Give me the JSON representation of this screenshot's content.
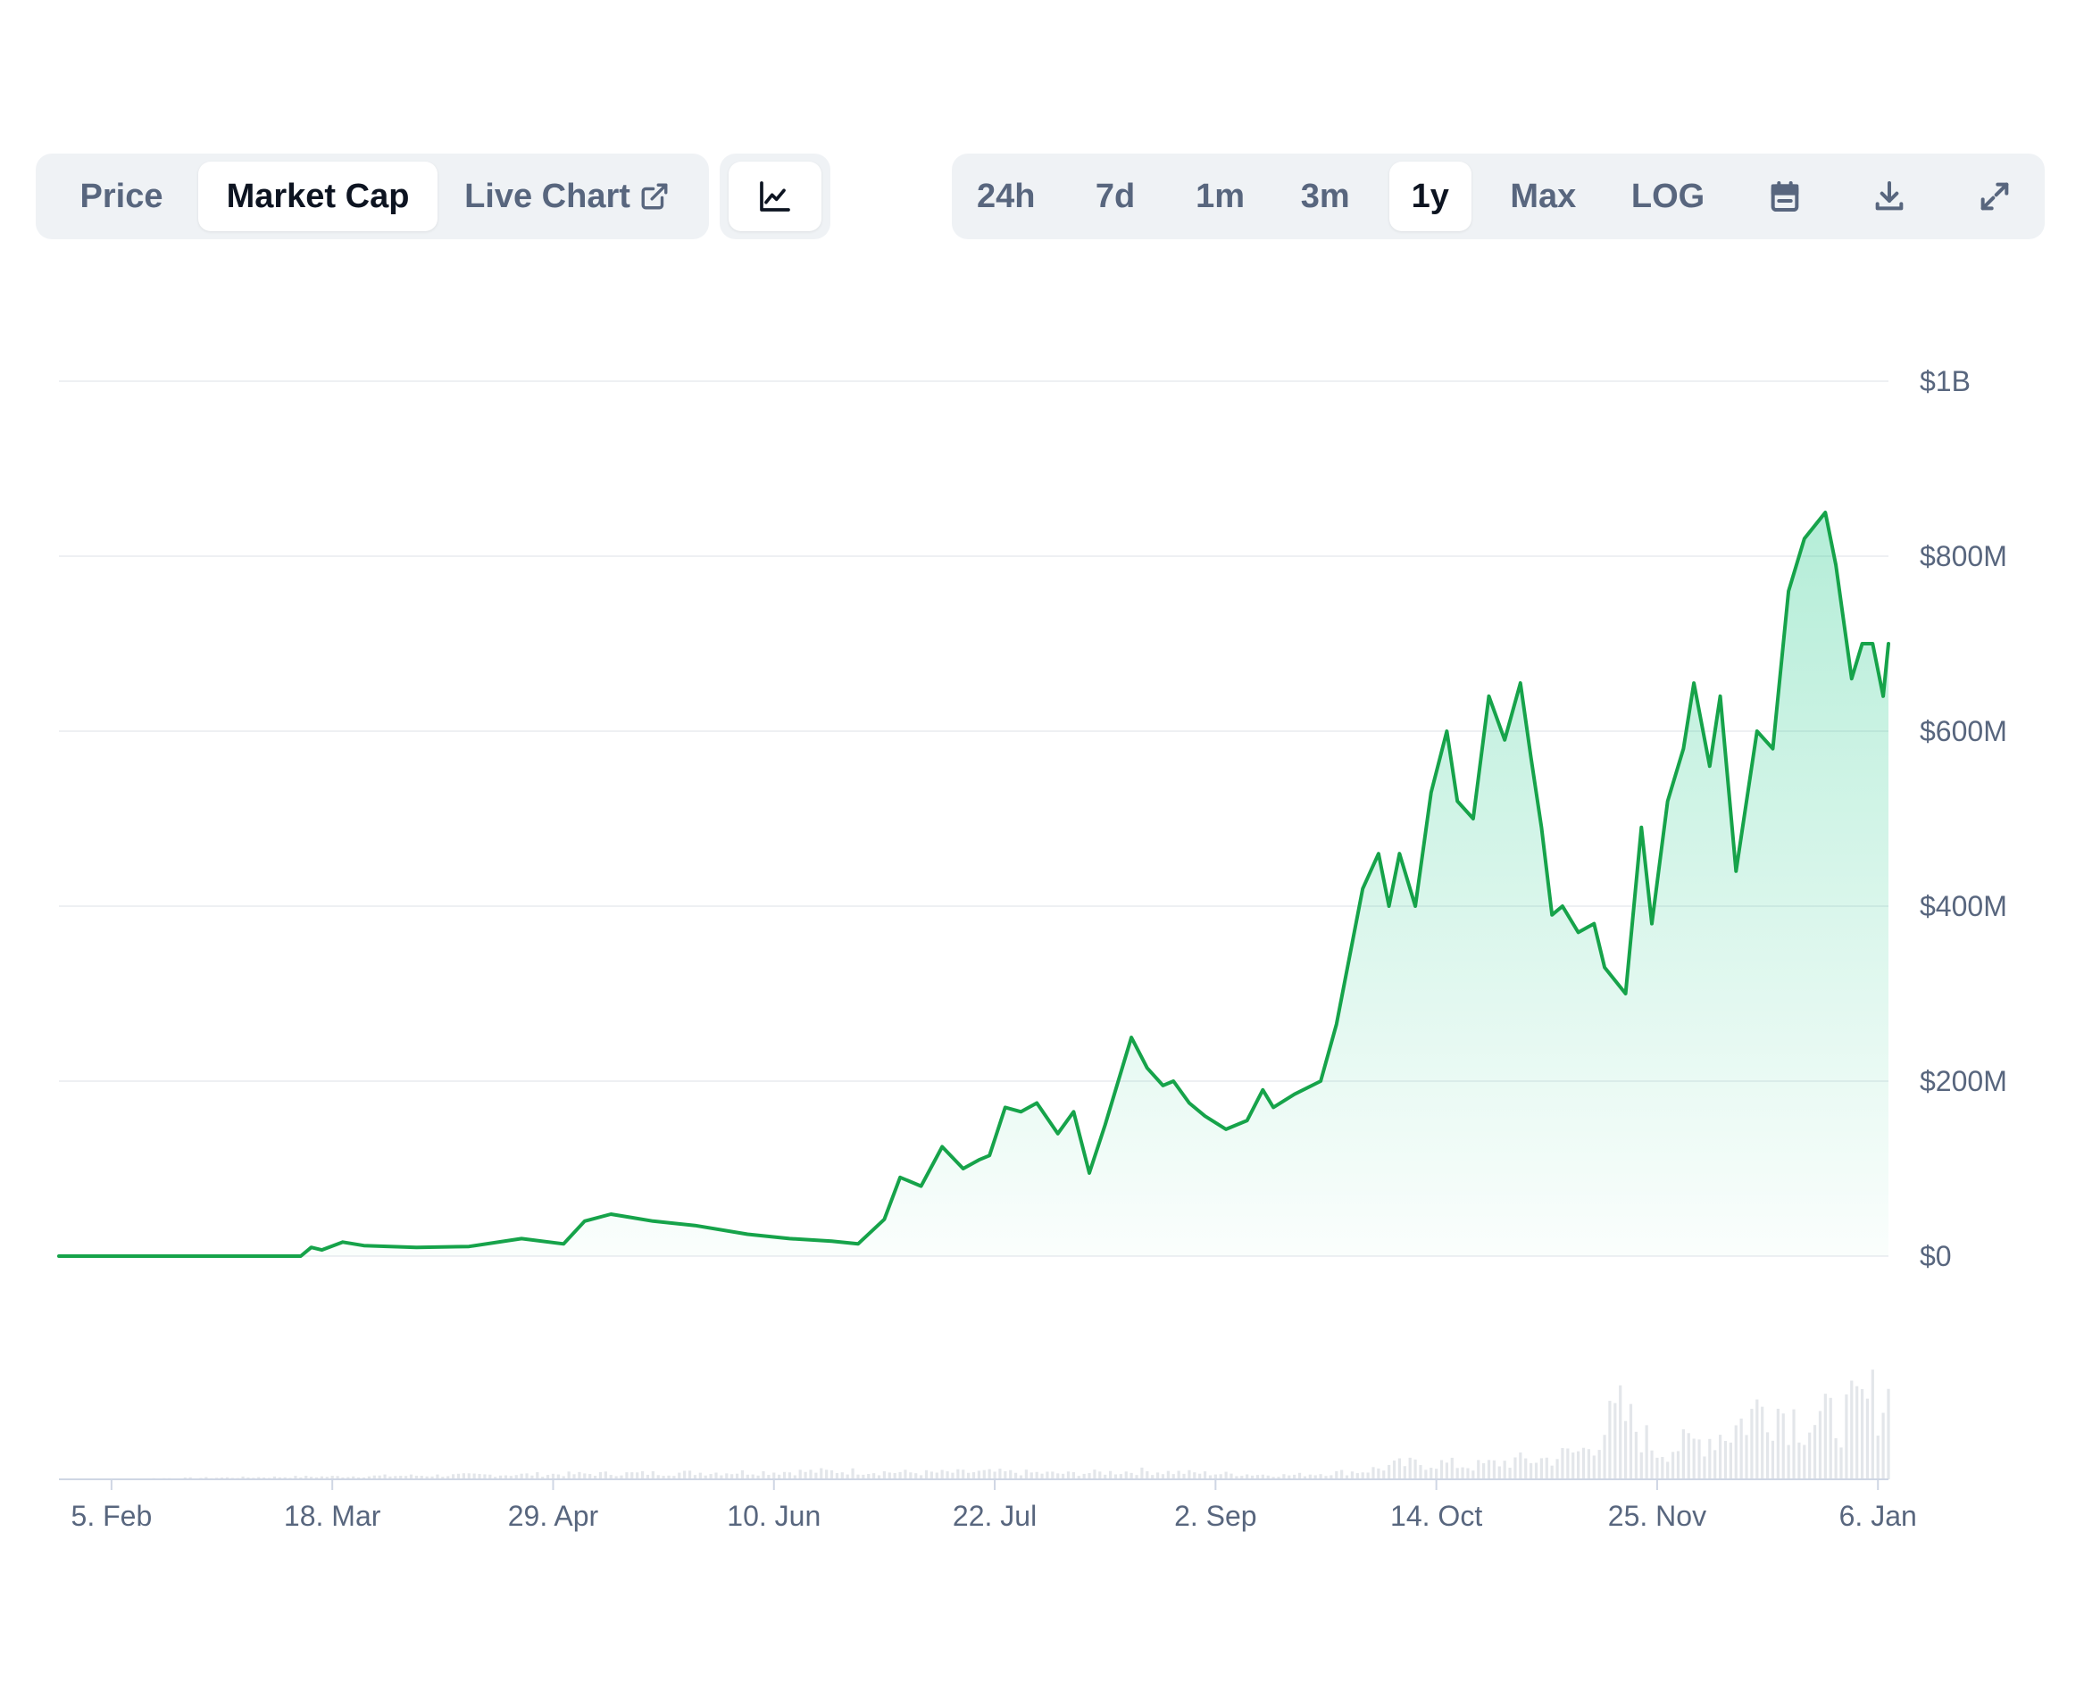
{
  "toolbar": {
    "chart_types": [
      {
        "label": "Price",
        "active": false
      },
      {
        "label": "Market Cap",
        "active": true
      },
      {
        "label": "Live Chart",
        "active": false,
        "icon": "external-link-icon"
      }
    ],
    "style_icon": "line-chart-icon",
    "ranges": [
      {
        "label": "24h",
        "active": false
      },
      {
        "label": "7d",
        "active": false
      },
      {
        "label": "1m",
        "active": false
      },
      {
        "label": "3m",
        "active": false
      },
      {
        "label": "1y",
        "active": true
      },
      {
        "label": "Max",
        "active": false
      },
      {
        "label": "LOG",
        "active": false
      }
    ],
    "action_icons": [
      "calendar-icon",
      "download-icon",
      "expand-icon"
    ]
  },
  "chart_data": {
    "type": "area",
    "title": "",
    "xlabel": "",
    "ylabel": "",
    "line_color": "#16a34a",
    "fill_color": "#16c784",
    "grid": true,
    "y_axis": {
      "position": "right",
      "ylim": [
        0,
        1000
      ],
      "unit": "$M",
      "ticks": [
        0,
        200,
        400,
        600,
        800,
        1000
      ],
      "tick_labels": [
        "$0",
        "$200M",
        "$400M",
        "$600M",
        "$800M",
        "$1B"
      ]
    },
    "x_axis": {
      "start": "2024-01-26",
      "end": "2025-01-08",
      "ticks": [
        "2024-02-05",
        "2024-03-18",
        "2024-04-29",
        "2024-06-10",
        "2024-07-22",
        "2024-09-02",
        "2024-10-14",
        "2024-11-25",
        "2025-01-06"
      ],
      "tick_labels": [
        "5. Feb",
        "18. Mar",
        "29. Apr",
        "10. Jun",
        "22. Jul",
        "2. Sep",
        "14. Oct",
        "25. Nov",
        "6. Jan"
      ]
    },
    "series": [
      {
        "x": [
          "2024-01-26",
          "2024-03-12",
          "2024-03-14",
          "2024-03-16",
          "2024-03-20",
          "2024-03-24",
          "2024-04-03",
          "2024-04-13",
          "2024-04-23",
          "2024-05-01",
          "2024-05-05",
          "2024-05-10",
          "2024-05-14",
          "2024-05-18",
          "2024-05-26",
          "2024-06-05",
          "2024-06-13",
          "2024-06-21",
          "2024-06-26",
          "2024-07-01",
          "2024-07-04",
          "2024-07-08",
          "2024-07-12",
          "2024-07-16",
          "2024-07-19",
          "2024-07-21",
          "2024-07-24",
          "2024-07-27",
          "2024-07-30",
          "2024-08-03",
          "2024-08-06",
          "2024-08-09",
          "2024-08-12",
          "2024-08-17",
          "2024-08-20",
          "2024-08-23",
          "2024-08-25",
          "2024-08-28",
          "2024-08-31",
          "2024-09-04",
          "2024-09-08",
          "2024-09-11",
          "2024-09-13",
          "2024-09-17",
          "2024-09-22",
          "2024-09-25",
          "2024-09-30",
          "2024-10-03",
          "2024-10-05",
          "2024-10-07",
          "2024-10-10",
          "2024-10-13",
          "2024-10-16",
          "2024-10-18",
          "2024-10-21",
          "2024-10-24",
          "2024-10-27",
          "2024-10-30",
          "2024-11-01",
          "2024-11-03",
          "2024-11-05",
          "2024-11-07",
          "2024-11-10",
          "2024-11-13",
          "2024-11-15",
          "2024-11-19",
          "2024-11-22",
          "2024-11-24",
          "2024-11-27",
          "2024-11-30",
          "2024-12-02",
          "2024-12-05",
          "2024-12-07",
          "2024-12-10",
          "2024-12-14",
          "2024-12-17",
          "2024-12-20",
          "2024-12-23",
          "2024-12-27",
          "2024-12-29",
          "2025-01-01",
          "2025-01-03",
          "2025-01-05",
          "2025-01-07",
          "2025-01-08"
        ],
        "values": [
          0,
          0,
          10,
          7,
          16,
          12,
          10,
          11,
          20,
          14,
          40,
          48,
          44,
          40,
          35,
          25,
          20,
          17,
          14,
          42,
          90,
          80,
          125,
          100,
          110,
          115,
          170,
          165,
          175,
          140,
          165,
          95,
          150,
          250,
          215,
          195,
          200,
          175,
          160,
          145,
          155,
          190,
          170,
          185,
          200,
          265,
          420,
          460,
          400,
          460,
          400,
          530,
          600,
          520,
          500,
          640,
          590,
          655,
          570,
          490,
          390,
          400,
          370,
          380,
          330,
          300,
          490,
          380,
          520,
          580,
          655,
          560,
          640,
          440,
          600,
          580,
          760,
          820,
          850,
          790,
          660,
          700,
          700,
          640,
          700
        ]
      }
    ],
    "volume": {
      "x": [
        "2024-01-26",
        "2024-06-24",
        "2024-07-08",
        "2024-07-22",
        "2024-08-05",
        "2024-08-19",
        "2024-09-02",
        "2024-09-16",
        "2024-09-30",
        "2024-10-07",
        "2024-10-14",
        "2024-10-21",
        "2024-10-28",
        "2024-11-04",
        "2024-11-11",
        "2024-11-18",
        "2024-11-25",
        "2024-12-02",
        "2024-12-09",
        "2024-12-16",
        "2024-12-23",
        "2024-12-30",
        "2025-01-06"
      ],
      "values": [
        0,
        0.1,
        0.08,
        0.09,
        0.07,
        0.1,
        0.07,
        0.05,
        0.1,
        0.18,
        0.2,
        0.16,
        0.22,
        0.25,
        0.35,
        0.82,
        0.35,
        0.45,
        0.6,
        0.95,
        0.7,
        0.75,
        1.0
      ]
    }
  }
}
